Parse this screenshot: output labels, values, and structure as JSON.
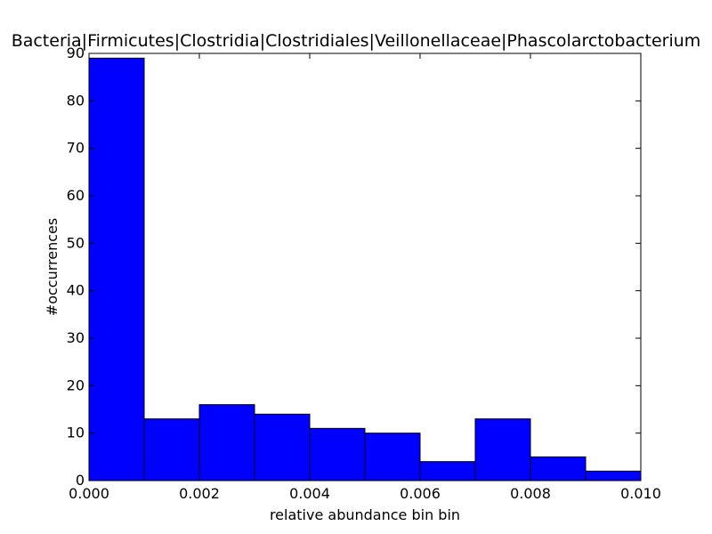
{
  "chart_data": {
    "type": "bar",
    "title": "Bacteria|Firmicutes|Clostridia|Clostridiales|Veillonellaceae|Phascolarctobacterium",
    "xlabel": "relative abundance bin bin",
    "ylabel": "#occurrences",
    "xlim": [
      0.0,
      0.01
    ],
    "ylim": [
      0,
      90
    ],
    "grid": false,
    "bar_color": "#0000ff",
    "bins": [
      {
        "x0": 0.0,
        "x1": 0.001,
        "value": 89
      },
      {
        "x0": 0.001,
        "x1": 0.002,
        "value": 13
      },
      {
        "x0": 0.002,
        "x1": 0.003,
        "value": 16
      },
      {
        "x0": 0.003,
        "x1": 0.004,
        "value": 14
      },
      {
        "x0": 0.004,
        "x1": 0.005,
        "value": 11
      },
      {
        "x0": 0.005,
        "x1": 0.006,
        "value": 10
      },
      {
        "x0": 0.006,
        "x1": 0.007,
        "value": 4
      },
      {
        "x0": 0.007,
        "x1": 0.008,
        "value": 13
      },
      {
        "x0": 0.008,
        "x1": 0.009,
        "value": 5
      },
      {
        "x0": 0.009,
        "x1": 0.01,
        "value": 2
      }
    ],
    "xticks": [
      {
        "value": 0.0,
        "label": "0.000"
      },
      {
        "value": 0.002,
        "label": "0.002"
      },
      {
        "value": 0.004,
        "label": "0.004"
      },
      {
        "value": 0.006,
        "label": "0.006"
      },
      {
        "value": 0.008,
        "label": "0.008"
      },
      {
        "value": 0.01,
        "label": "0.010"
      }
    ],
    "yticks": [
      {
        "value": 0,
        "label": "0"
      },
      {
        "value": 10,
        "label": "10"
      },
      {
        "value": 20,
        "label": "20"
      },
      {
        "value": 30,
        "label": "30"
      },
      {
        "value": 40,
        "label": "40"
      },
      {
        "value": 50,
        "label": "50"
      },
      {
        "value": 60,
        "label": "60"
      },
      {
        "value": 70,
        "label": "70"
      },
      {
        "value": 80,
        "label": "80"
      },
      {
        "value": 90,
        "label": "90"
      }
    ]
  }
}
